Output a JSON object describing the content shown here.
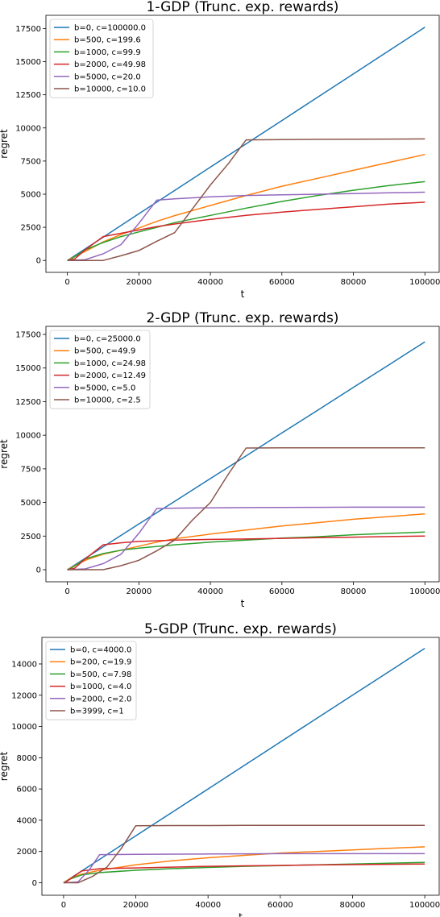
{
  "chart_data": [
    {
      "type": "line",
      "title": "1-GDP (Trunc. exp. rewards)",
      "xlabel": "t",
      "ylabel": "regret",
      "xlim": [
        -6000,
        104000
      ],
      "ylim": [
        -900,
        18500
      ],
      "xticks": [
        0,
        20000,
        40000,
        60000,
        80000,
        100000
      ],
      "yticks": [
        0,
        2500,
        5000,
        7500,
        10000,
        12500,
        15000,
        17500
      ],
      "legend_position": "upper left",
      "grid": false,
      "series": [
        {
          "name": "b=0, c=100000.0",
          "color": "#1f77b4",
          "x": [
            0,
            10000,
            20000,
            30000,
            40000,
            50000,
            60000,
            70000,
            80000,
            90000,
            100000
          ],
          "y": [
            0,
            1750,
            3520,
            5280,
            7040,
            8800,
            10560,
            12320,
            14080,
            15840,
            17600
          ]
        },
        {
          "name": "b=500, c=199.6",
          "color": "#ff7f0e",
          "x": [
            0,
            500,
            3000,
            6000,
            10000,
            15000,
            20000,
            25000,
            30000,
            40000,
            50000,
            60000,
            70000,
            80000,
            90000,
            100000
          ],
          "y": [
            0,
            80,
            420,
            820,
            1400,
            1950,
            2450,
            2950,
            3380,
            4150,
            4900,
            5600,
            6200,
            6800,
            7400,
            8000
          ]
        },
        {
          "name": "b=1000, c=99.9",
          "color": "#2ca02c",
          "x": [
            0,
            1000,
            5000,
            10000,
            15000,
            20000,
            25000,
            30000,
            40000,
            50000,
            60000,
            70000,
            80000,
            90000,
            100000
          ],
          "y": [
            0,
            100,
            800,
            1350,
            1800,
            2150,
            2500,
            2850,
            3400,
            3950,
            4450,
            4900,
            5300,
            5650,
            5950
          ]
        },
        {
          "name": "b=2000, c=49.98",
          "color": "#d62728",
          "x": [
            0,
            2000,
            5000,
            10000,
            15000,
            20000,
            25000,
            30000,
            40000,
            50000,
            60000,
            70000,
            80000,
            90000,
            100000
          ],
          "y": [
            0,
            100,
            800,
            1800,
            2050,
            2300,
            2550,
            2750,
            3100,
            3400,
            3650,
            3850,
            4050,
            4250,
            4400
          ]
        },
        {
          "name": "b=5000, c=20.0",
          "color": "#9467bd",
          "x": [
            0,
            5000,
            10000,
            15000,
            20000,
            25000,
            30000,
            40000,
            50000,
            60000,
            70000,
            80000,
            90000,
            100000
          ],
          "y": [
            0,
            60,
            500,
            1200,
            2800,
            4550,
            4650,
            4800,
            4900,
            4950,
            5000,
            5050,
            5100,
            5150
          ]
        },
        {
          "name": "b=10000, c=10.0",
          "color": "#8c564b",
          "x": [
            0,
            10000,
            15000,
            20000,
            25000,
            30000,
            35000,
            40000,
            45000,
            50000,
            60000,
            70000,
            80000,
            90000,
            100000
          ],
          "y": [
            0,
            0,
            350,
            750,
            1450,
            2100,
            3900,
            5700,
            7300,
            9100,
            9120,
            9140,
            9150,
            9160,
            9170
          ]
        }
      ]
    },
    {
      "type": "line",
      "title": "2-GDP (Trunc. exp. rewards)",
      "xlabel": "t",
      "ylabel": "regret",
      "xlim": [
        -6000,
        104000
      ],
      "ylim": [
        -900,
        18100
      ],
      "xticks": [
        0,
        20000,
        40000,
        60000,
        80000,
        100000
      ],
      "yticks": [
        0,
        2500,
        5000,
        7500,
        10000,
        12500,
        15000,
        17500
      ],
      "legend_position": "upper left",
      "grid": false,
      "series": [
        {
          "name": "b=0, c=25000.0",
          "color": "#1f77b4",
          "x": [
            0,
            10000,
            20000,
            30000,
            40000,
            50000,
            60000,
            70000,
            80000,
            90000,
            100000
          ],
          "y": [
            0,
            1700,
            3400,
            5080,
            6780,
            8470,
            10170,
            11860,
            13560,
            15250,
            16950
          ]
        },
        {
          "name": "b=500, c=49.9",
          "color": "#ff7f0e",
          "x": [
            0,
            500,
            3000,
            6000,
            10000,
            15000,
            20000,
            25000,
            30000,
            40000,
            50000,
            60000,
            70000,
            80000,
            90000,
            100000
          ],
          "y": [
            0,
            80,
            450,
            800,
            1150,
            1450,
            1750,
            2050,
            2300,
            2650,
            2950,
            3250,
            3500,
            3750,
            3950,
            4150
          ]
        },
        {
          "name": "b=1000, c=24.98",
          "color": "#2ca02c",
          "x": [
            0,
            1000,
            5000,
            10000,
            15000,
            20000,
            30000,
            40000,
            50000,
            60000,
            70000,
            80000,
            90000,
            100000
          ],
          "y": [
            0,
            100,
            800,
            1200,
            1450,
            1600,
            1850,
            2050,
            2200,
            2350,
            2450,
            2600,
            2700,
            2800
          ]
        },
        {
          "name": "b=2000, c=12.49",
          "color": "#d62728",
          "x": [
            0,
            2000,
            5000,
            10000,
            15000,
            20000,
            25000,
            30000,
            40000,
            50000,
            60000,
            70000,
            80000,
            90000,
            100000
          ],
          "y": [
            0,
            100,
            800,
            1850,
            2000,
            2100,
            2150,
            2200,
            2250,
            2280,
            2330,
            2380,
            2420,
            2460,
            2500
          ]
        },
        {
          "name": "b=5000, c=5.0",
          "color": "#9467bd",
          "x": [
            0,
            5000,
            10000,
            15000,
            20000,
            25000,
            30000,
            40000,
            50000,
            60000,
            70000,
            80000,
            90000,
            100000
          ],
          "y": [
            0,
            60,
            450,
            1150,
            2700,
            4550,
            4580,
            4600,
            4620,
            4630,
            4640,
            4650,
            4650,
            4650
          ]
        },
        {
          "name": "b=10000, c=2.5",
          "color": "#8c564b",
          "x": [
            0,
            10000,
            15000,
            20000,
            25000,
            30000,
            35000,
            40000,
            45000,
            50000,
            60000,
            70000,
            80000,
            90000,
            100000
          ],
          "y": [
            0,
            0,
            300,
            700,
            1400,
            2200,
            3700,
            5000,
            7100,
            9050,
            9060,
            9070,
            9060,
            9060,
            9060
          ]
        }
      ]
    },
    {
      "type": "line",
      "title": "5-GDP (Trunc. exp. rewards)",
      "xlabel": "t",
      "ylabel": "regret",
      "xlim": [
        -6000,
        104000
      ],
      "ylim": [
        -800,
        15700
      ],
      "xticks": [
        0,
        20000,
        40000,
        60000,
        80000,
        100000
      ],
      "yticks": [
        0,
        2000,
        4000,
        6000,
        8000,
        10000,
        12000,
        14000
      ],
      "legend_position": "upper left",
      "grid": false,
      "series": [
        {
          "name": "b=0, c=4000.0",
          "color": "#1f77b4",
          "x": [
            0,
            10000,
            20000,
            30000,
            40000,
            50000,
            60000,
            70000,
            80000,
            90000,
            100000
          ],
          "y": [
            0,
            1500,
            3000,
            4500,
            6000,
            7500,
            9000,
            10500,
            12000,
            13500,
            15000
          ]
        },
        {
          "name": "b=200, c=19.9",
          "color": "#ff7f0e",
          "x": [
            0,
            2000,
            5000,
            10000,
            20000,
            30000,
            40000,
            50000,
            60000,
            70000,
            80000,
            90000,
            100000
          ],
          "y": [
            0,
            300,
            550,
            800,
            1150,
            1400,
            1600,
            1750,
            1900,
            2000,
            2100,
            2200,
            2300
          ]
        },
        {
          "name": "b=500, c=7.98",
          "color": "#2ca02c",
          "x": [
            0,
            2000,
            5000,
            10000,
            20000,
            30000,
            40000,
            50000,
            60000,
            70000,
            80000,
            90000,
            100000
          ],
          "y": [
            0,
            250,
            500,
            650,
            800,
            900,
            980,
            1050,
            1100,
            1150,
            1200,
            1250,
            1300
          ]
        },
        {
          "name": "b=1000, c=4.0",
          "color": "#d62728",
          "x": [
            0,
            1000,
            5000,
            10000,
            20000,
            30000,
            40000,
            50000,
            60000,
            70000,
            80000,
            90000,
            100000
          ],
          "y": [
            0,
            100,
            750,
            900,
            950,
            1000,
            1050,
            1080,
            1110,
            1140,
            1160,
            1180,
            1200
          ]
        },
        {
          "name": "b=2000, c=2.0",
          "color": "#9467bd",
          "x": [
            0,
            4000,
            7000,
            10000,
            20000,
            30000,
            40000,
            50000,
            60000,
            70000,
            80000,
            90000,
            100000
          ],
          "y": [
            0,
            50,
            800,
            1800,
            1820,
            1830,
            1840,
            1850,
            1860,
            1860,
            1860,
            1860,
            1860
          ]
        },
        {
          "name": "b=3999, c=1",
          "color": "#8c564b",
          "x": [
            0,
            4000,
            8000,
            12000,
            16000,
            20000,
            30000,
            40000,
            50000,
            60000,
            70000,
            80000,
            90000,
            100000
          ],
          "y": [
            0,
            0,
            400,
            1000,
            2200,
            3650,
            3660,
            3660,
            3670,
            3670,
            3670,
            3670,
            3670,
            3670
          ]
        }
      ]
    }
  ]
}
